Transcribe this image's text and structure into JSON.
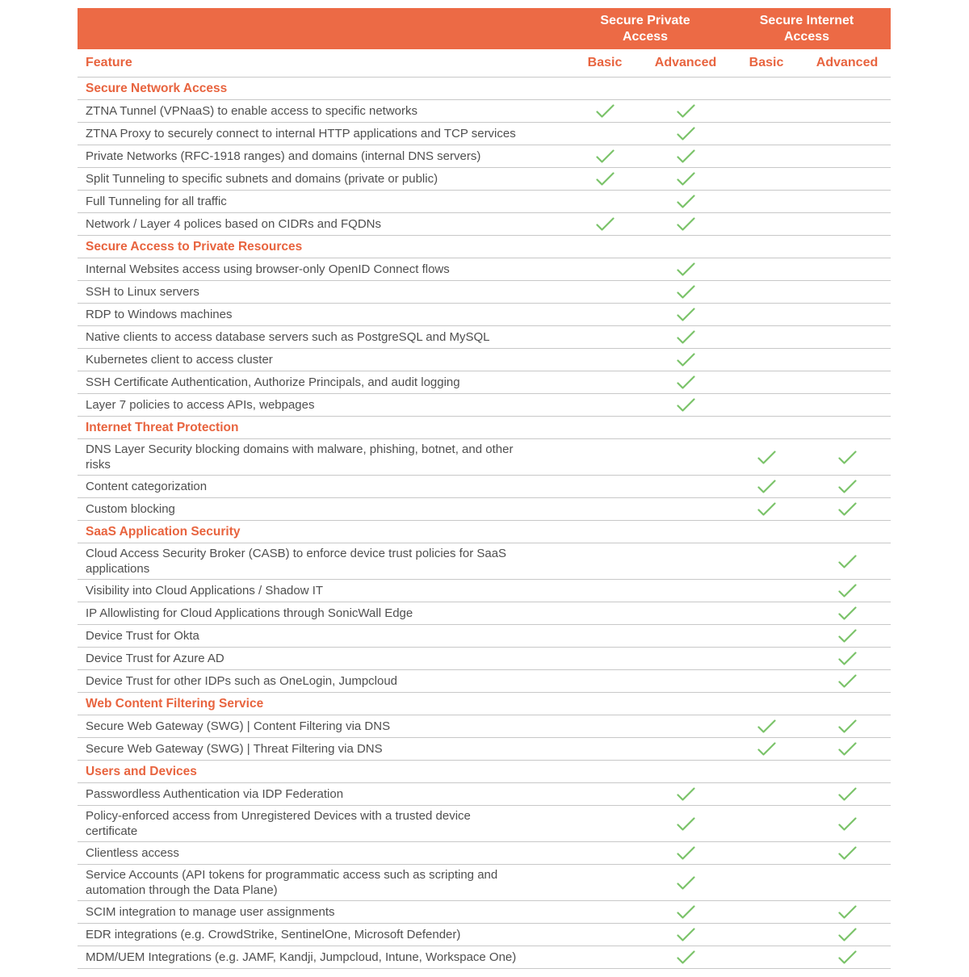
{
  "colors": {
    "banner_bg": "#EC6A45",
    "orange_text": "#E8643F",
    "check_green": "#7BC36A",
    "row_text": "#4F4F4F",
    "divider": "#C8C8C8"
  },
  "header": {
    "group1": "Secure Private Access",
    "group2": "Secure Internet Access",
    "feature_label": "Feature",
    "columns": [
      "Basic",
      "Advanced",
      "Basic",
      "Advanced"
    ]
  },
  "check_icon": "green-checkmark",
  "sections": [
    {
      "title": "Secure Network Access",
      "rows": [
        {
          "feature": "ZTNA Tunnel (VPNaaS) to enable access to specific networks",
          "checks": [
            1,
            1,
            0,
            0
          ]
        },
        {
          "feature": "ZTNA Proxy to securely connect to internal HTTP applications and TCP services",
          "checks": [
            0,
            1,
            0,
            0
          ]
        },
        {
          "feature": "Private Networks (RFC-1918 ranges) and domains (internal DNS servers)",
          "checks": [
            1,
            1,
            0,
            0
          ]
        },
        {
          "feature": "Split Tunneling to specific subnets and domains (private or public)",
          "checks": [
            1,
            1,
            0,
            0
          ]
        },
        {
          "feature": "Full Tunneling for all traffic",
          "checks": [
            0,
            1,
            0,
            0
          ]
        },
        {
          "feature": "Network / Layer 4 polices based on CIDRs and FQDNs",
          "checks": [
            1,
            1,
            0,
            0
          ]
        }
      ]
    },
    {
      "title": "Secure Access to Private Resources",
      "rows": [
        {
          "feature": "Internal Websites access using browser-only OpenID Connect flows",
          "checks": [
            0,
            1,
            0,
            0
          ]
        },
        {
          "feature": "SSH to Linux servers",
          "checks": [
            0,
            1,
            0,
            0
          ]
        },
        {
          "feature": "RDP to Windows machines",
          "checks": [
            0,
            1,
            0,
            0
          ]
        },
        {
          "feature": "Native clients to access database servers such as PostgreSQL and MySQL",
          "checks": [
            0,
            1,
            0,
            0
          ]
        },
        {
          "feature": "Kubernetes client to access cluster",
          "checks": [
            0,
            1,
            0,
            0
          ]
        },
        {
          "feature": "SSH Certificate Authentication, Authorize Principals, and audit logging",
          "checks": [
            0,
            1,
            0,
            0
          ]
        },
        {
          "feature": "Layer 7 policies to access APIs, webpages",
          "checks": [
            0,
            1,
            0,
            0
          ]
        }
      ]
    },
    {
      "title": "Internet Threat Protection",
      "rows": [
        {
          "feature": "DNS Layer Security blocking domains with malware, phishing, botnet, and other\nrisks",
          "checks": [
            0,
            0,
            1,
            1
          ]
        },
        {
          "feature": "Content categorization",
          "checks": [
            0,
            0,
            1,
            1
          ]
        },
        {
          "feature": "Custom blocking",
          "checks": [
            0,
            0,
            1,
            1
          ]
        }
      ]
    },
    {
      "title": "SaaS Application Security",
      "rows": [
        {
          "feature": "Cloud Access Security Broker (CASB) to enforce device trust policies for SaaS\napplications",
          "checks": [
            0,
            0,
            0,
            1
          ]
        },
        {
          "feature": "Visibility into Cloud Applications / Shadow IT",
          "checks": [
            0,
            0,
            0,
            1
          ]
        },
        {
          "feature": "IP Allowlisting for Cloud Applications through SonicWall Edge",
          "checks": [
            0,
            0,
            0,
            1
          ]
        },
        {
          "feature": "Device Trust for Okta",
          "checks": [
            0,
            0,
            0,
            1
          ]
        },
        {
          "feature": "Device Trust for Azure AD",
          "checks": [
            0,
            0,
            0,
            1
          ]
        },
        {
          "feature": "Device Trust for other IDPs such as OneLogin, Jumpcloud",
          "checks": [
            0,
            0,
            0,
            1
          ]
        }
      ]
    },
    {
      "title": "Web Content Filtering Service",
      "rows": [
        {
          "feature": "Secure Web Gateway (SWG) | Content Filtering via DNS",
          "checks": [
            0,
            0,
            1,
            1
          ]
        },
        {
          "feature": "Secure Web Gateway (SWG) | Threat Filtering via DNS",
          "checks": [
            0,
            0,
            1,
            1
          ]
        }
      ]
    },
    {
      "title": "Users and Devices",
      "rows": [
        {
          "feature": "Passwordless Authentication via IDP Federation",
          "checks": [
            0,
            1,
            0,
            1
          ]
        },
        {
          "feature": "Policy-enforced access from Unregistered Devices with a trusted device\ncertificate",
          "checks": [
            0,
            1,
            0,
            1
          ]
        },
        {
          "feature": "Clientless access",
          "checks": [
            0,
            1,
            0,
            1
          ]
        },
        {
          "feature": "Service Accounts (API tokens for programmatic access such as scripting and\nautomation through the Data Plane)",
          "checks": [
            0,
            1,
            0,
            0
          ]
        },
        {
          "feature": "SCIM integration to manage user assignments",
          "checks": [
            0,
            1,
            0,
            1
          ]
        },
        {
          "feature": "EDR integrations (e.g. CrowdStrike, SentinelOne, Microsoft Defender)",
          "checks": [
            0,
            1,
            0,
            1
          ]
        },
        {
          "feature": "MDM/UEM Integrations (e.g. JAMF, Kandji, Jumpcloud, Intune, Workspace One)",
          "checks": [
            0,
            1,
            0,
            1
          ]
        }
      ]
    }
  ]
}
